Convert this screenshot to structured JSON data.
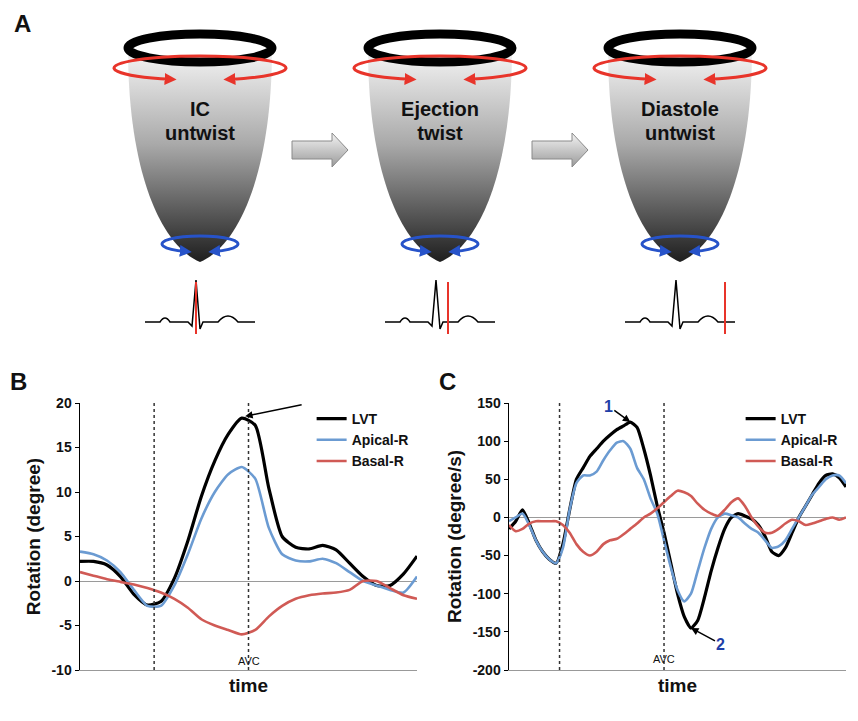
{
  "diagram": {
    "panel": "A",
    "stages": [
      "IC untwist",
      "Ejection twist",
      "Diastole untwist"
    ]
  },
  "chart_data": [
    {
      "panel": "B",
      "type": "line",
      "xlabel": "time",
      "ylabel": "Rotation (degree)",
      "x": [
        0,
        4,
        8,
        12,
        16,
        20,
        24,
        28,
        32,
        36,
        40,
        44,
        48,
        52,
        56,
        60,
        64,
        68,
        72,
        76,
        80,
        84,
        88,
        92,
        96,
        100
      ],
      "series": [
        {
          "name": "LVT",
          "color": "#000000",
          "values": [
            2.2,
            2.2,
            1.8,
            0.5,
            -1.5,
            -2.7,
            -2.3,
            0.3,
            4.5,
            9.5,
            13.5,
            16.5,
            18.3,
            17.5,
            10.5,
            5,
            3.8,
            3.6,
            4,
            3.5,
            2,
            0.5,
            -0.5,
            -0.5,
            0.8,
            2.8
          ]
        },
        {
          "name": "Apical-R",
          "color": "#6b9bd2",
          "values": [
            3.3,
            3,
            2.3,
            1,
            -1,
            -2.8,
            -2.8,
            -0.5,
            3,
            7,
            10,
            12,
            12.8,
            11.5,
            6,
            3,
            2.3,
            2.2,
            2.5,
            2,
            1,
            0,
            -0.5,
            -1,
            -1.3,
            0.5
          ]
        },
        {
          "name": "Basal-R",
          "color": "#d05a55",
          "values": [
            1,
            0.6,
            0.2,
            -0.1,
            -0.4,
            -0.8,
            -1.3,
            -2,
            -3,
            -4.3,
            -5,
            -5.5,
            -6,
            -5.5,
            -4,
            -2.8,
            -2,
            -1.6,
            -1.4,
            -1.3,
            -1,
            0,
            0,
            -0.8,
            -1.6,
            -2
          ]
        }
      ],
      "xlim": [
        0,
        100
      ],
      "xticks": [],
      "ylim": [
        -10,
        20
      ],
      "yticks": [
        -10,
        -5,
        0,
        5,
        10,
        15,
        20
      ],
      "tick_labels": "y",
      "grid": false,
      "legend": "top right",
      "annotations": [
        {
          "x": 22,
          "line_style": "dotted"
        },
        {
          "x": 50,
          "line_style": "dotted"
        },
        {
          "text": "AVC",
          "x": 50,
          "y": -9
        },
        {
          "x": 49,
          "y": 18.5,
          "arrow": true
        }
      ]
    },
    {
      "panel": "C",
      "type": "line",
      "xlabel": "time",
      "ylabel": "Rotation (degree/s)",
      "x": [
        0,
        2,
        4,
        6,
        8,
        10,
        12,
        14,
        16,
        18,
        20,
        22,
        24,
        26,
        28,
        30,
        32,
        34,
        36,
        38,
        40,
        42,
        44,
        46,
        48,
        50,
        52,
        54,
        56,
        58,
        60,
        62,
        64,
        66,
        68,
        70,
        72,
        74,
        76,
        78,
        80,
        82,
        84,
        86,
        88,
        90,
        92,
        94,
        96,
        98,
        100
      ],
      "series": [
        {
          "name": "LVT",
          "color": "#000000",
          "values": [
            -15,
            -5,
            10,
            -8,
            -30,
            -45,
            -55,
            -60,
            -35,
            10,
            50,
            65,
            80,
            90,
            100,
            108,
            115,
            120,
            125,
            118,
            90,
            55,
            15,
            -20,
            -60,
            -100,
            -130,
            -145,
            -135,
            -105,
            -70,
            -40,
            -15,
            0,
            5,
            2,
            -2,
            -10,
            -25,
            -45,
            -50,
            -40,
            -20,
            0,
            15,
            30,
            45,
            55,
            57,
            52,
            40
          ]
        },
        {
          "name": "Apical-R",
          "color": "#6b9bd2",
          "values": [
            -5,
            0,
            5,
            -10,
            -30,
            -45,
            -55,
            -60,
            -40,
            10,
            45,
            55,
            55,
            60,
            75,
            88,
            98,
            100,
            90,
            65,
            50,
            25,
            5,
            -30,
            -65,
            -95,
            -110,
            -100,
            -70,
            -40,
            -15,
            0,
            5,
            3,
            0,
            -8,
            -15,
            -20,
            -30,
            -40,
            -38,
            -30,
            -15,
            0,
            15,
            30,
            40,
            50,
            55,
            55,
            45
          ]
        },
        {
          "name": "Basal-R",
          "color": "#d05a55",
          "values": [
            -10,
            -18,
            -15,
            -8,
            -5,
            -5,
            -5,
            -5,
            -10,
            -20,
            -35,
            -45,
            -50,
            -45,
            -35,
            -30,
            -28,
            -22,
            -15,
            -8,
            0,
            5,
            12,
            20,
            28,
            35,
            33,
            28,
            18,
            10,
            5,
            2,
            10,
            20,
            25,
            15,
            0,
            -12,
            -20,
            -20,
            -15,
            -8,
            -3,
            -5,
            -10,
            -8,
            -5,
            -2,
            0,
            -3,
            0
          ]
        }
      ],
      "xlim": [
        0,
        100
      ],
      "xticks": [],
      "ylim": [
        -200,
        150
      ],
      "yticks": [
        -200,
        -150,
        -100,
        -50,
        0,
        50,
        100,
        150
      ],
      "tick_labels": "y",
      "grid": false,
      "legend": "top right",
      "annotations": [
        {
          "x": 15,
          "line_style": "dotted"
        },
        {
          "x": 46,
          "line_style": "dotted"
        },
        {
          "text": "AVC",
          "x": 46,
          "y": -185
        },
        {
          "text": "1",
          "x": 36,
          "y": 125,
          "arrow": true,
          "color": "#1f3fa8"
        },
        {
          "text": "2",
          "x": 54,
          "y": -145,
          "arrow": true,
          "color": "#1f3fa8"
        }
      ]
    }
  ]
}
